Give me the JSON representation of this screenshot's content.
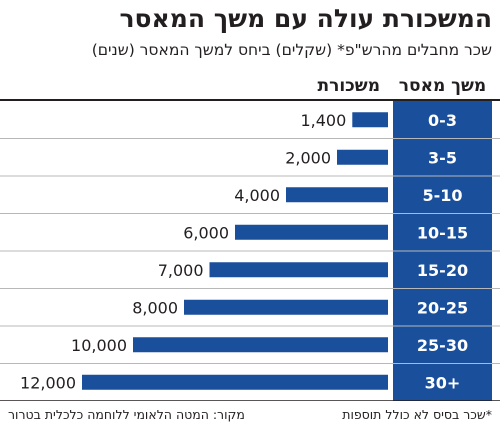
{
  "title": "המשכורת עולה עם משך המאסר",
  "subtitle": "שכר מחבלים מהרש\"פ* (שקלים) ביחס למשך המאסר (שנים)",
  "footnote": "*שכר בסיס לא כולל תוספות",
  "source": "מקור: המטה הלאומי ללוחמה כלכלית בטרור",
  "colors": {
    "bar": "#1a4f9c",
    "label_bg": "#1a4f9c",
    "label_text": "#ffffff",
    "row_divider": "#b8b8b8",
    "text": "#231f20"
  },
  "chart_data": {
    "type": "bar",
    "orientation": "horizontal",
    "category_header": "משך מאסר",
    "value_header": "משכורת",
    "categories": [
      "0-3",
      "3-5",
      "5-10",
      "10-15",
      "15-20",
      "20-25",
      "25-30",
      "30+"
    ],
    "values": [
      1400,
      2000,
      4000,
      6000,
      7000,
      8000,
      10000,
      12000
    ],
    "value_labels": [
      "1,400",
      "2,000",
      "4,000",
      "6,000",
      "7,000",
      "8,000",
      "10,000",
      "12,000"
    ],
    "xlim": [
      0,
      12000
    ],
    "grid": false,
    "legend": "none"
  }
}
